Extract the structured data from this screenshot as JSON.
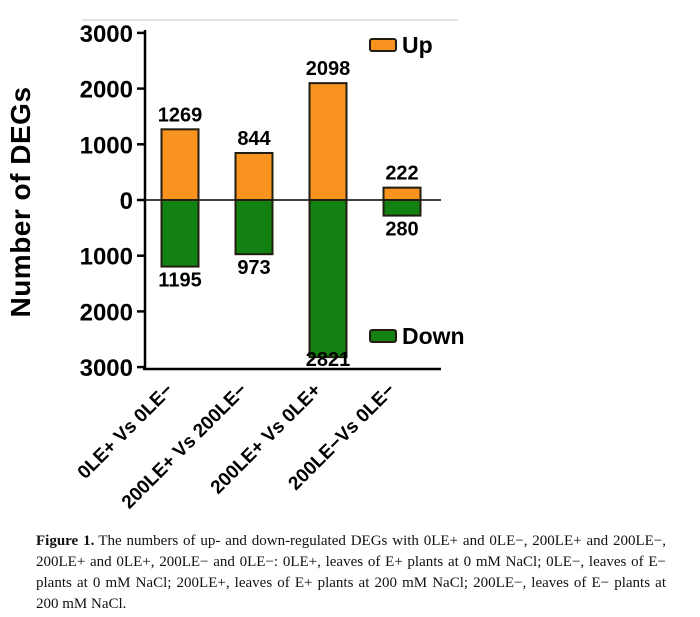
{
  "figure": {
    "caption": {
      "label": "Figure 1.",
      "text": "The numbers of up- and down-regulated DEGs with 0LE+ and 0LE−, 200LE+ and 200LE−, 200LE+ and 0LE+, 200LE− and 0LE−: 0LE+, leaves of E+ plants at 0 mM NaCl; 0LE−, leaves of E− plants at 0 mM NaCl; 200LE+, leaves of E+ plants at 200 mM NaCl; 200LE−, leaves of E− plants at 200 mM NaCl."
    }
  },
  "chart_data": {
    "type": "bar",
    "title": "",
    "xlabel": "",
    "ylabel": "Number of DEGs",
    "categories": [
      "0LE+ Vs 0LE−",
      "200LE+ Vs 200LE−",
      "200LE+ Vs 0LE+",
      "200LE−Vs 0LE−"
    ],
    "series": [
      {
        "name": "Up",
        "direction": "up",
        "color": "#F7931E",
        "values": [
          1269,
          844,
          2098,
          222
        ]
      },
      {
        "name": "Down",
        "direction": "down",
        "color": "#128112",
        "values": [
          1195,
          973,
          2821,
          280
        ]
      }
    ],
    "ylim": [
      -3000,
      3000
    ],
    "ytick_step": 1000,
    "ytick_labels": [
      "3000",
      "2000",
      "1000",
      "0",
      "1000",
      "2000",
      "3000"
    ],
    "grid": false,
    "axis_color": "#000000",
    "bar_outline_color": "#221d10",
    "legend": {
      "up_label": "Up",
      "down_label": "Down",
      "position": "inside-right"
    }
  }
}
